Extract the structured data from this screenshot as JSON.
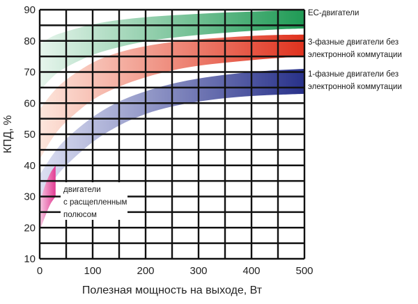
{
  "chart_data": {
    "type": "area",
    "xlabel": "Полезная мощность на выходе, Вт",
    "ylabel": "КПД, %",
    "xlim": [
      0,
      500
    ],
    "ylim": [
      10,
      90
    ],
    "xticks": [
      0,
      100,
      200,
      300,
      400,
      500
    ],
    "yticks": [
      10,
      20,
      30,
      40,
      50,
      60,
      70,
      80,
      90
    ],
    "grid": true,
    "series": [
      {
        "name": "ЕС-двигатели",
        "label_lines": [
          "ЕС-двигатели"
        ],
        "color_light": "#e6f5ec",
        "color_dark": "#1f9a55",
        "x": [
          0,
          25,
          50,
          100,
          150,
          200,
          250,
          300,
          350,
          400,
          450,
          500
        ],
        "upper": [
          79,
          81.5,
          83,
          85.3,
          86.7,
          87.6,
          88.2,
          88.7,
          89.1,
          89.4,
          89.7,
          90
        ],
        "lower": [
          64,
          68.5,
          71.5,
          75.5,
          78,
          79.8,
          81,
          81.9,
          82.6,
          83.2,
          83.7,
          84
        ]
      },
      {
        "name": "3-фазные двигатели без электронной коммутации",
        "label_lines": [
          "3-фазные двигатели без",
          "электронной коммутации"
        ],
        "color_light": "#fde6dc",
        "color_dark": "#e0321e",
        "x": [
          0,
          25,
          50,
          100,
          150,
          200,
          250,
          300,
          350,
          400,
          450,
          500
        ],
        "upper": [
          58,
          63.5,
          67.5,
          73,
          76.3,
          78.3,
          79.6,
          80.5,
          81.1,
          81.6,
          81.9,
          82
        ],
        "lower": [
          42,
          49,
          54,
          61,
          65.3,
          68.3,
          70.5,
          72,
          73,
          73.8,
          74.5,
          75
        ]
      },
      {
        "name": "1-фазные двигатели без электронной коммутации",
        "label_lines": [
          "1-фазные двигатели без",
          "электронной коммутации"
        ],
        "color_light": "#dcdff2",
        "color_dark": "#28318a",
        "x": [
          0,
          25,
          50,
          100,
          150,
          200,
          250,
          300,
          350,
          400,
          450,
          500
        ],
        "upper": [
          37,
          43.5,
          48.5,
          55.5,
          60.5,
          63.8,
          66.2,
          67.9,
          69.1,
          70,
          70.6,
          71
        ],
        "lower": [
          29,
          35,
          40,
          47.5,
          52.8,
          56.5,
          58.9,
          60.5,
          61.6,
          62.3,
          62.7,
          63
        ]
      },
      {
        "name": "двигатели с расщепленным полюсом",
        "label_lines": [
          "двигатели",
          "с расщепленным",
          "полюсом"
        ],
        "color_light": "#f6c9e2",
        "color_dark": "#e23c93",
        "x": [
          0,
          10,
          20,
          30
        ],
        "upper": [
          28,
          33.5,
          37.5,
          40
        ],
        "lower": [
          19,
          23.5,
          27.5,
          30
        ]
      }
    ]
  }
}
